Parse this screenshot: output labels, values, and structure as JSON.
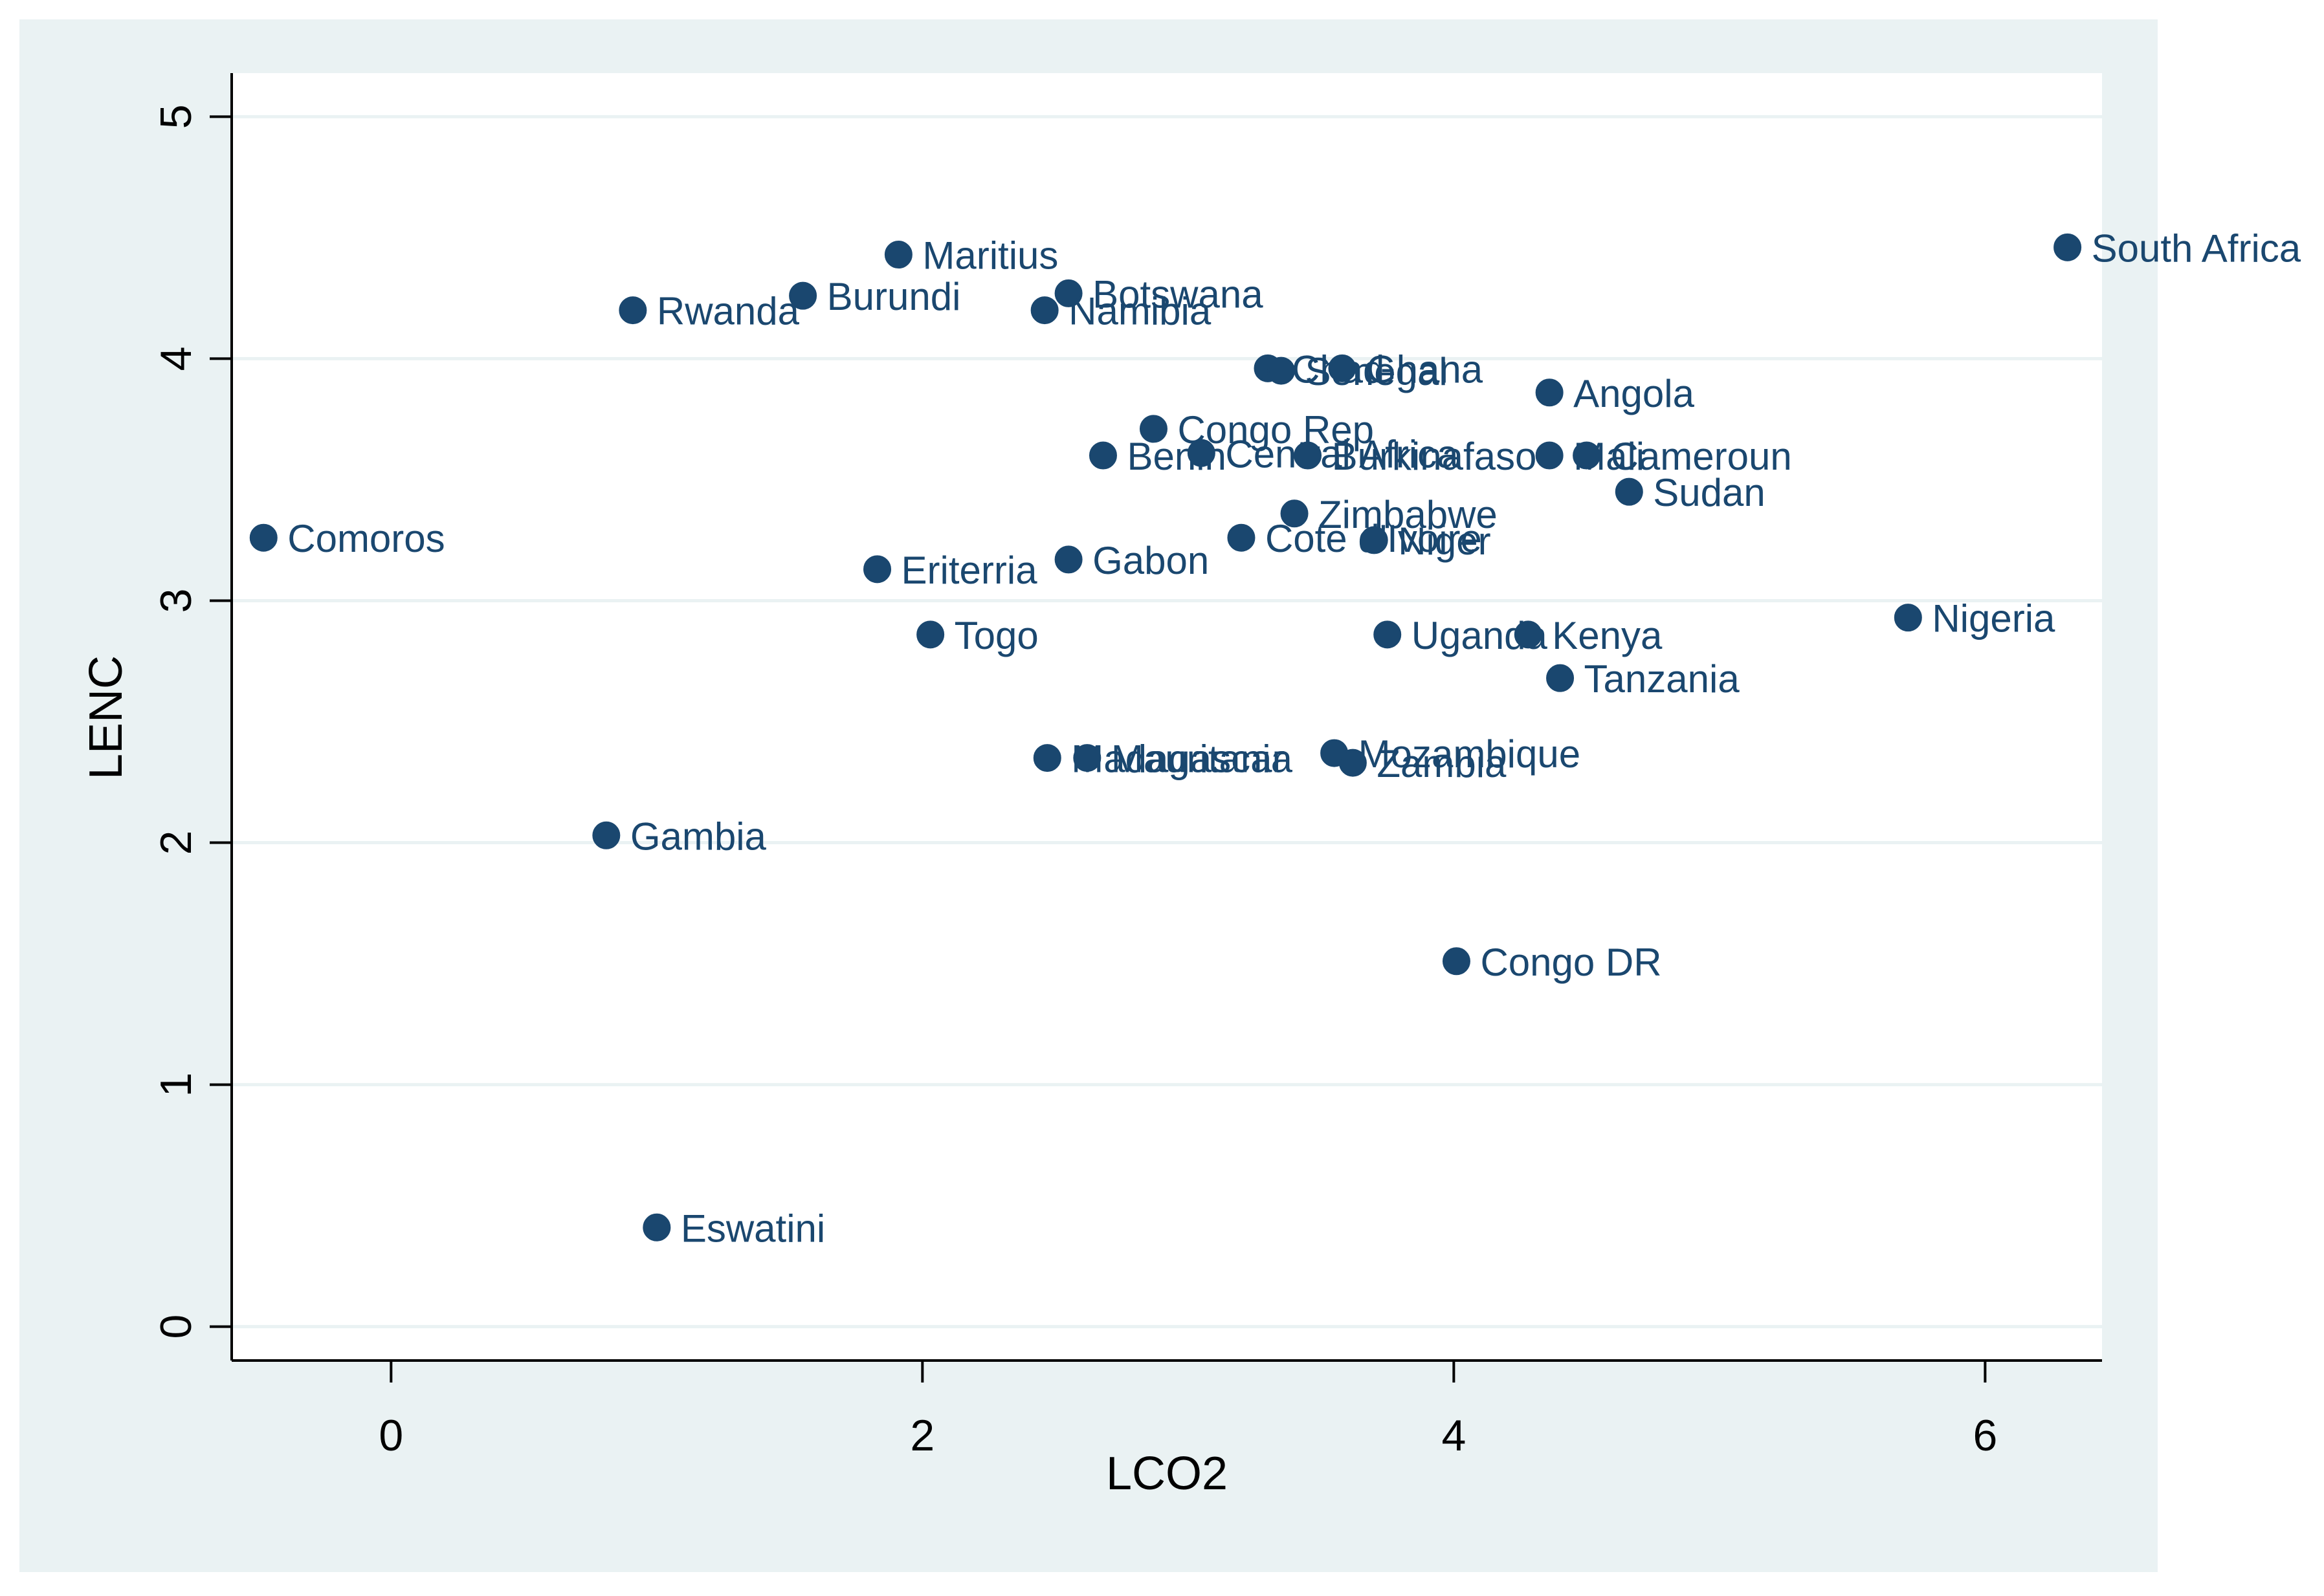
{
  "chart_data": {
    "type": "scatter",
    "title": "",
    "xlabel": "LCO2",
    "ylabel": "LENC",
    "xlim": [
      -0.6,
      6.44
    ],
    "ylim": [
      -0.14,
      5.18
    ],
    "xticks": [
      0,
      2,
      4,
      6
    ],
    "yticks": [
      0,
      1,
      2,
      3,
      4,
      5
    ],
    "grid": true,
    "legend": "none",
    "colors": {
      "outer_background": "#eaf2f3",
      "plot_background": "#ffffff",
      "marker": "#1a476f",
      "grid": "#eaf2f3",
      "axis": "#000000"
    },
    "points": [
      {
        "label": "South Africa",
        "x": 6.31,
        "y": 4.46
      },
      {
        "label": "Maritius",
        "x": 1.91,
        "y": 4.43
      },
      {
        "label": "Burundi",
        "x": 1.55,
        "y": 4.26
      },
      {
        "label": "Botswana",
        "x": 2.55,
        "y": 4.27
      },
      {
        "label": "Rwanda",
        "x": 0.91,
        "y": 4.2
      },
      {
        "label": "Namibia",
        "x": 2.46,
        "y": 4.2
      },
      {
        "label": "Chad",
        "x": 3.3,
        "y": 3.96
      },
      {
        "label": "Senegal",
        "x": 3.35,
        "y": 3.95
      },
      {
        "label": "Ghana",
        "x": 3.58,
        "y": 3.96
      },
      {
        "label": "Angola",
        "x": 4.36,
        "y": 3.86
      },
      {
        "label": "Congo Rep",
        "x": 2.87,
        "y": 3.71
      },
      {
        "label": "Benin",
        "x": 2.68,
        "y": 3.6
      },
      {
        "label": "Central Africa",
        "x": 3.05,
        "y": 3.61
      },
      {
        "label": "Burkinafaso",
        "x": 3.45,
        "y": 3.6
      },
      {
        "label": "Mali",
        "x": 4.36,
        "y": 3.6
      },
      {
        "label": "Cameroun",
        "x": 4.5,
        "y": 3.6
      },
      {
        "label": "Sudan",
        "x": 4.66,
        "y": 3.45
      },
      {
        "label": "Zimbabwe",
        "x": 3.4,
        "y": 3.36
      },
      {
        "label": "Cote d'Ivoire",
        "x": 3.2,
        "y": 3.26
      },
      {
        "label": "Niger",
        "x": 3.7,
        "y": 3.25
      },
      {
        "label": "Comoros",
        "x": -0.48,
        "y": 3.26
      },
      {
        "label": "Eriterria",
        "x": 1.83,
        "y": 3.13
      },
      {
        "label": "Gabon",
        "x": 2.55,
        "y": 3.17
      },
      {
        "label": "Nigeria",
        "x": 5.71,
        "y": 2.93
      },
      {
        "label": "Togo",
        "x": 2.03,
        "y": 2.86
      },
      {
        "label": "Uganda",
        "x": 3.75,
        "y": 2.86
      },
      {
        "label": "Kenya",
        "x": 4.28,
        "y": 2.86
      },
      {
        "label": "Tanzania",
        "x": 4.4,
        "y": 2.68
      },
      {
        "label": "Madagascar",
        "x": 2.47,
        "y": 2.35
      },
      {
        "label": "Mauritania",
        "x": 2.62,
        "y": 2.35
      },
      {
        "label": "Mozambique",
        "x": 3.55,
        "y": 2.37
      },
      {
        "label": "Zambia",
        "x": 3.62,
        "y": 2.33
      },
      {
        "label": "Gambia",
        "x": 0.81,
        "y": 2.03
      },
      {
        "label": "Congo DR",
        "x": 4.01,
        "y": 1.51
      },
      {
        "label": "Eswatini",
        "x": 1.0,
        "y": 0.41
      }
    ]
  }
}
